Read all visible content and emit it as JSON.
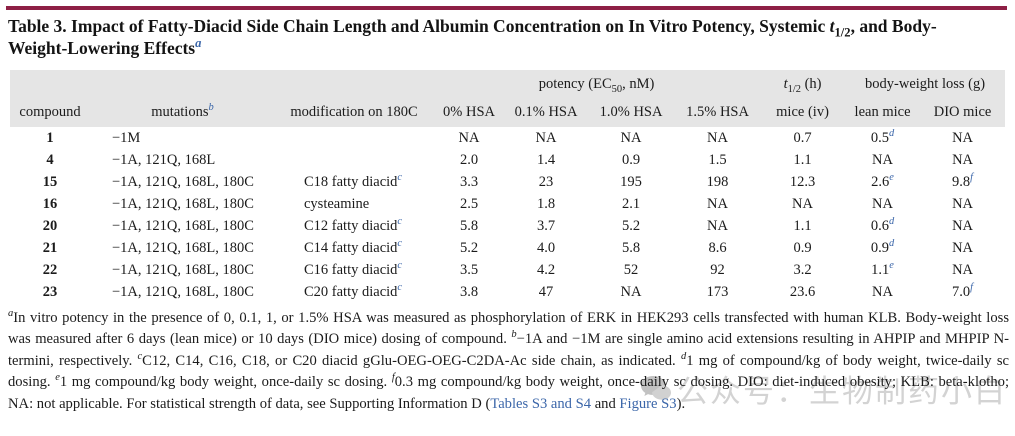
{
  "colors": {
    "rule_maroon": "#8e2045",
    "link_blue": "#3b66a9",
    "header_band_gray": "#e5e5e5",
    "watermark_gray": "#c9c9c9"
  },
  "title": {
    "segments": [
      {
        "t": "Table 3. Impact of Fatty-Diacid Side Chain Length and Albumin Concentration on In Vitro Potency, Systemic "
      },
      {
        "t": "t",
        "s": "i"
      },
      {
        "t": "1/2",
        "s": "sub"
      },
      {
        "t": ", and Body-"
      },
      {
        "t": "",
        "s": "br"
      },
      {
        "t": "Weight-Lowering Effects"
      },
      {
        "t": "a",
        "s": "supb"
      }
    ]
  },
  "table": {
    "group_header": {
      "potency": [
        {
          "t": "potency (EC"
        },
        {
          "t": "50",
          "s": "sub"
        },
        {
          "t": ", nM)"
        }
      ],
      "half_life": [
        {
          "t": "t",
          "s": "i"
        },
        {
          "t": "1/2",
          "s": "sub"
        },
        {
          "t": " (h)"
        }
      ],
      "body_weight": [
        {
          "t": "body-weight loss (g)"
        }
      ]
    },
    "columns": [
      "compound",
      [
        {
          "t": "mutations"
        },
        {
          "t": "b",
          "s": "supb"
        }
      ],
      "modification on 180C",
      "0% HSA",
      "0.1% HSA",
      "1.0% HSA",
      "1.5% HSA",
      "mice (iv)",
      "lean mice",
      "DIO mice"
    ],
    "column_keys": [
      "compound",
      "mutations",
      "modification",
      "hsa-0",
      "hsa-0-1",
      "hsa-1-0",
      "hsa-1-5",
      "mice-iv",
      "lean-mice",
      "dio-mice"
    ],
    "rows": [
      [
        "1",
        "−1M",
        "",
        "NA",
        "NA",
        "NA",
        "NA",
        "0.7",
        [
          {
            "t": "0.5"
          },
          {
            "t": "d",
            "s": "supb"
          }
        ],
        "NA"
      ],
      [
        "4",
        "−1A, 121Q, 168L",
        "",
        "2.0",
        "1.4",
        "0.9",
        "1.5",
        "1.1",
        "NA",
        "NA"
      ],
      [
        "15",
        "−1A, 121Q, 168L, 180C",
        [
          {
            "t": "C18 fatty diacid"
          },
          {
            "t": "c",
            "s": "supb"
          }
        ],
        "3.3",
        "23",
        "195",
        "198",
        "12.3",
        [
          {
            "t": "2.6"
          },
          {
            "t": "e",
            "s": "supb"
          }
        ],
        [
          {
            "t": "9.8"
          },
          {
            "t": "f",
            "s": "supb"
          }
        ]
      ],
      [
        "16",
        "−1A, 121Q, 168L, 180C",
        "cysteamine",
        "2.5",
        "1.8",
        "2.1",
        "NA",
        "NA",
        "NA",
        "NA"
      ],
      [
        "20",
        "−1A, 121Q, 168L, 180C",
        [
          {
            "t": "C12 fatty diacid"
          },
          {
            "t": "c",
            "s": "supb"
          }
        ],
        "5.8",
        "3.7",
        "5.2",
        "NA",
        "1.1",
        [
          {
            "t": "0.6"
          },
          {
            "t": "d",
            "s": "supb"
          }
        ],
        "NA"
      ],
      [
        "21",
        "−1A, 121Q, 168L, 180C",
        [
          {
            "t": "C14 fatty diacid"
          },
          {
            "t": "c",
            "s": "supb"
          }
        ],
        "5.2",
        "4.0",
        "5.8",
        "8.6",
        "0.9",
        [
          {
            "t": "0.9"
          },
          {
            "t": "d",
            "s": "supb"
          }
        ],
        "NA"
      ],
      [
        "22",
        "−1A, 121Q, 168L, 180C",
        [
          {
            "t": "C16 fatty diacid"
          },
          {
            "t": "c",
            "s": "supb"
          }
        ],
        "3.5",
        "4.2",
        "52",
        "92",
        "3.2",
        [
          {
            "t": "1.1"
          },
          {
            "t": "e",
            "s": "supb"
          }
        ],
        "NA"
      ],
      [
        "23",
        "−1A, 121Q, 168L, 180C",
        [
          {
            "t": "C20 fatty diacid"
          },
          {
            "t": "c",
            "s": "supb"
          }
        ],
        "3.8",
        "47",
        "NA",
        "173",
        "23.6",
        "NA",
        [
          {
            "t": "7.0"
          },
          {
            "t": "f",
            "s": "supb"
          }
        ]
      ]
    ]
  },
  "footnote": {
    "segments": [
      {
        "t": "a",
        "s": "sup"
      },
      {
        "t": "In vitro potency in the presence of 0, 0.1, 1, or 1.5% HSA was measured as phosphorylation of ERK in HEK293 cells transfected with human KLB. Body-weight loss was measured after 6 days (lean mice) or 10 days (DIO mice) dosing of compound. "
      },
      {
        "t": "b",
        "s": "sup"
      },
      {
        "t": "−1A and −1M are single amino acid extensions resulting in AHPIP and MHPIP N-termini, respectively. "
      },
      {
        "t": "c",
        "s": "sup"
      },
      {
        "t": "C12, C14, C16, C18, or C20 diacid gGlu-OEG-OEG-C2DA-Ac side chain, as indicated. "
      },
      {
        "t": "d",
        "s": "sup"
      },
      {
        "t": "1 mg of compound/kg of body weight, twice-daily sc dosing. "
      },
      {
        "t": "e",
        "s": "sup"
      },
      {
        "t": "1 mg compound/kg body weight, once-daily sc dosing. "
      },
      {
        "t": "f",
        "s": "sup"
      },
      {
        "t": "0.3 mg compound/kg body weight, once-daily sc dosing. DIO: diet-induced obesity; KLB: beta-klotho; NA: not applicable. For statistical strength of data, see Supporting Information D ("
      },
      {
        "t": "Tables S3 and S4",
        "s": "link"
      },
      {
        "t": " and "
      },
      {
        "t": "Figure S3",
        "s": "link"
      },
      {
        "t": ")."
      }
    ]
  },
  "watermark": {
    "text": "公众号：生物制药小白"
  }
}
